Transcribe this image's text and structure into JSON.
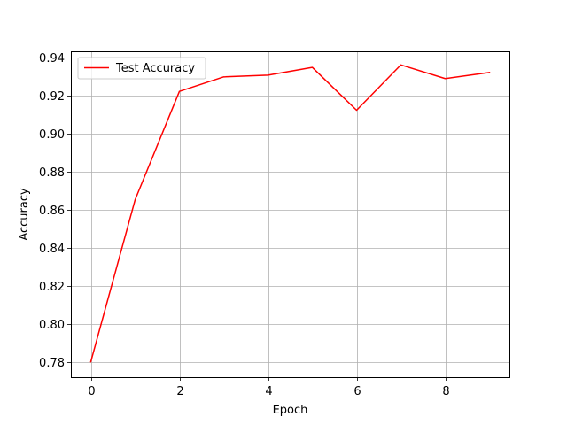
{
  "chart_data": {
    "type": "line",
    "title": "",
    "xlabel": "Epoch",
    "ylabel": "Accuracy",
    "xlim": [
      -0.45,
      9.45
    ],
    "ylim": [
      0.7723,
      0.9433
    ],
    "x_ticks": [
      0,
      2,
      4,
      6,
      8
    ],
    "x_tick_labels": [
      "0",
      "2",
      "4",
      "6",
      "8"
    ],
    "y_ticks": [
      0.78,
      0.8,
      0.82,
      0.84,
      0.86,
      0.88,
      0.9,
      0.92,
      0.94
    ],
    "y_tick_labels": [
      "0.78",
      "0.80",
      "0.82",
      "0.84",
      "0.86",
      "0.88",
      "0.90",
      "0.92",
      "0.94"
    ],
    "grid": true,
    "legend_position": "upper-left",
    "series": [
      {
        "name": "Test Accuracy",
        "color": "#ff0000",
        "x": [
          0,
          1,
          2,
          3,
          4,
          5,
          6,
          7,
          8,
          9
        ],
        "y": [
          0.7804,
          0.8654,
          0.9223,
          0.9299,
          0.9308,
          0.9349,
          0.9124,
          0.9362,
          0.929,
          0.9322
        ]
      }
    ]
  }
}
